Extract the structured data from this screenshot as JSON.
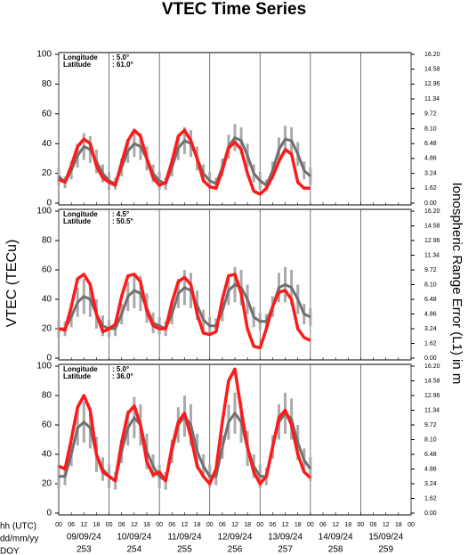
{
  "figure": {
    "title": "VTEC Time Series",
    "ylabel": "VTEC (TECu)",
    "y2label": "Ionospheric Range Error (L1) in m",
    "xlim": [
      0,
      168
    ],
    "xticks": [
      {
        "value": 0,
        "label": "00"
      },
      {
        "value": 6,
        "label": "06"
      },
      {
        "value": 12,
        "label": "12"
      },
      {
        "value": 18,
        "label": "18"
      },
      {
        "value": 24,
        "label": "00"
      },
      {
        "value": 30,
        "label": "06"
      },
      {
        "value": 36,
        "label": "12"
      },
      {
        "value": 42,
        "label": "18"
      },
      {
        "value": 48,
        "label": "00"
      },
      {
        "value": 54,
        "label": "06"
      },
      {
        "value": 60,
        "label": "12"
      },
      {
        "value": 66,
        "label": "18"
      },
      {
        "value": 72,
        "label": "00"
      },
      {
        "value": 78,
        "label": "06"
      },
      {
        "value": 84,
        "label": "12"
      },
      {
        "value": 90,
        "label": "18"
      },
      {
        "value": 96,
        "label": "00"
      },
      {
        "value": 102,
        "label": "06"
      },
      {
        "value": 108,
        "label": "12"
      },
      {
        "value": 114,
        "label": "18"
      },
      {
        "value": 120,
        "label": "00"
      },
      {
        "value": 126,
        "label": "06"
      },
      {
        "value": 132,
        "label": "12"
      },
      {
        "value": 138,
        "label": "18"
      },
      {
        "value": 144,
        "label": "00"
      },
      {
        "value": 150,
        "label": "06"
      },
      {
        "value": 156,
        "label": "12"
      },
      {
        "value": 162,
        "label": "18"
      },
      {
        "value": 168,
        "label": "00"
      }
    ],
    "dates": [
      "09/09/24",
      "10/09/24",
      "11/09/24",
      "12/09/24",
      "13/09/24",
      "14/09/24",
      "15/09/24"
    ],
    "doys": [
      253,
      254,
      255,
      256,
      257,
      258,
      259
    ],
    "row_labels": [
      "hh (UTC)",
      "dd/mm/yy",
      "DOY"
    ]
  },
  "chart_data": [
    {
      "type": "line",
      "annotation": {
        "lon_label": "Longitude",
        "lon": ":  5.0°",
        "lat_label": "Latitude",
        "lat": ": 61.0°"
      },
      "x": [
        0,
        3,
        6,
        9,
        12,
        15,
        18,
        21,
        24,
        27,
        30,
        33,
        36,
        39,
        42,
        45,
        48,
        51,
        54,
        57,
        60,
        63,
        66,
        69,
        72,
        75,
        78,
        81,
        84,
        87,
        90,
        93,
        96,
        99,
        102,
        105,
        108,
        111,
        114,
        117,
        120
      ],
      "ylim": [
        0,
        100
      ],
      "yticks": [
        0,
        20,
        40,
        60,
        80,
        100
      ],
      "y2lim": [
        0,
        16.2
      ],
      "y2ticks": [
        {
          "value": 0,
          "label": "0.00"
        },
        1.62,
        3.24,
        4.86,
        6.48,
        {
          "value": 8.1,
          "label": "8.10"
        },
        9.72,
        11.34,
        12.96,
        14.58,
        {
          "value": 16.2,
          "label": "16.20"
        }
      ],
      "series": [
        {
          "color": "#707070",
          "values": [
            18,
            14,
            22,
            32,
            38,
            36,
            28,
            20,
            15,
            13,
            24,
            35,
            40,
            38,
            30,
            20,
            15,
            13,
            24,
            37,
            42,
            40,
            30,
            20,
            15,
            13,
            24,
            38,
            44,
            42,
            32,
            20,
            15,
            12,
            22,
            36,
            43,
            42,
            33,
            22,
            18
          ],
          "errors": [
            6,
            4,
            6,
            8,
            9,
            9,
            8,
            6,
            6,
            4,
            6,
            8,
            9,
            9,
            8,
            6,
            6,
            4,
            6,
            8,
            9,
            9,
            8,
            6,
            6,
            4,
            6,
            8,
            9,
            9,
            8,
            6,
            6,
            4,
            6,
            8,
            9,
            9,
            8,
            6,
            6
          ]
        },
        {
          "color": "#ff1a1a",
          "values": [
            16,
            14,
            25,
            38,
            43,
            40,
            25,
            17,
            14,
            12,
            27,
            42,
            49,
            45,
            30,
            17,
            12,
            14,
            28,
            45,
            49,
            42,
            30,
            15,
            11,
            10,
            22,
            37,
            41,
            36,
            20,
            8,
            6,
            10,
            18,
            28,
            36,
            33,
            14,
            10,
            10
          ]
        }
      ]
    },
    {
      "type": "line",
      "annotation": {
        "lon_label": "Longitude",
        "lon": ":  4.5°",
        "lat_label": "Latitude",
        "lat": ": 50.5°"
      },
      "x": [
        0,
        3,
        6,
        9,
        12,
        15,
        18,
        21,
        24,
        27,
        30,
        33,
        36,
        39,
        42,
        45,
        48,
        51,
        54,
        57,
        60,
        63,
        66,
        69,
        72,
        75,
        78,
        81,
        84,
        87,
        90,
        93,
        96,
        99,
        102,
        105,
        108,
        111,
        114,
        117,
        120
      ],
      "ylim": [
        0,
        100
      ],
      "yticks": [
        0,
        20,
        40,
        60,
        80,
        100
      ],
      "y2lim": [
        0,
        16.2
      ],
      "y2ticks": [
        {
          "value": 0,
          "label": "0.00"
        },
        1.62,
        3.24,
        4.86,
        6.48,
        {
          "value": 8.1,
          "label": "8.10"
        },
        9.72,
        11.34,
        12.96,
        14.58,
        {
          "value": 16.2,
          "label": "16.20"
        }
      ],
      "series": [
        {
          "color": "#707070",
          "values": [
            20,
            20,
            28,
            38,
            42,
            40,
            30,
            22,
            20,
            20,
            30,
            42,
            46,
            44,
            34,
            24,
            22,
            20,
            30,
            44,
            48,
            46,
            36,
            26,
            22,
            22,
            32,
            46,
            50,
            48,
            40,
            28,
            25,
            25,
            35,
            48,
            50,
            48,
            40,
            30,
            28
          ],
          "errors": [
            6,
            5,
            7,
            10,
            12,
            12,
            10,
            7,
            6,
            5,
            7,
            10,
            12,
            12,
            10,
            7,
            6,
            5,
            7,
            10,
            12,
            12,
            10,
            7,
            6,
            5,
            7,
            10,
            12,
            12,
            10,
            7,
            6,
            5,
            7,
            10,
            12,
            12,
            10,
            7,
            6
          ]
        },
        {
          "color": "#ff1a1a",
          "values": [
            20,
            19,
            35,
            54,
            57,
            50,
            30,
            18,
            20,
            23,
            42,
            56,
            57,
            52,
            32,
            22,
            20,
            20,
            38,
            52,
            55,
            50,
            30,
            17,
            16,
            18,
            40,
            56,
            57,
            44,
            20,
            8,
            7,
            20,
            35,
            45,
            46,
            40,
            20,
            14,
            12
          ]
        }
      ]
    },
    {
      "type": "line",
      "annotation": {
        "lon_label": "Longitude",
        "lon": ":  5.0°",
        "lat_label": "Latitude",
        "lat": ": 36.0°"
      },
      "x": [
        0,
        3,
        6,
        9,
        12,
        15,
        18,
        21,
        24,
        27,
        30,
        33,
        36,
        39,
        42,
        45,
        48,
        51,
        54,
        57,
        60,
        63,
        66,
        69,
        72,
        75,
        78,
        81,
        84,
        87,
        90,
        93,
        96,
        99,
        102,
        105,
        108,
        111,
        114,
        117,
        120
      ],
      "ylim": [
        0,
        100
      ],
      "yticks": [
        0,
        20,
        40,
        60,
        80,
        100
      ],
      "y2lim": [
        0,
        16.2
      ],
      "y2ticks": [
        {
          "value": 0,
          "label": "0.00"
        },
        1.62,
        3.24,
        4.86,
        6.48,
        {
          "value": 8.1,
          "label": "8.10"
        },
        9.72,
        11.34,
        12.96,
        14.58,
        {
          "value": 16.2,
          "label": "16.20"
        }
      ],
      "series": [
        {
          "color": "#707070",
          "values": [
            25,
            25,
            40,
            58,
            62,
            58,
            40,
            30,
            25,
            22,
            42,
            58,
            65,
            60,
            42,
            32,
            25,
            22,
            42,
            60,
            66,
            60,
            42,
            32,
            25,
            25,
            45,
            62,
            68,
            62,
            44,
            32,
            25,
            25,
            45,
            62,
            68,
            64,
            48,
            36,
            30
          ],
          "errors": [
            8,
            6,
            8,
            12,
            14,
            14,
            12,
            8,
            8,
            6,
            8,
            12,
            14,
            14,
            12,
            8,
            8,
            6,
            8,
            12,
            14,
            14,
            12,
            8,
            8,
            6,
            8,
            12,
            14,
            14,
            12,
            8,
            8,
            6,
            8,
            12,
            14,
            14,
            12,
            8,
            8
          ]
        },
        {
          "color": "#ff1a1a",
          "values": [
            32,
            30,
            50,
            72,
            80,
            70,
            40,
            28,
            25,
            22,
            48,
            68,
            73,
            60,
            35,
            26,
            28,
            22,
            45,
            62,
            68,
            52,
            32,
            25,
            20,
            30,
            62,
            90,
            98,
            70,
            45,
            28,
            20,
            25,
            45,
            65,
            70,
            60,
            40,
            28,
            24
          ]
        }
      ]
    }
  ]
}
